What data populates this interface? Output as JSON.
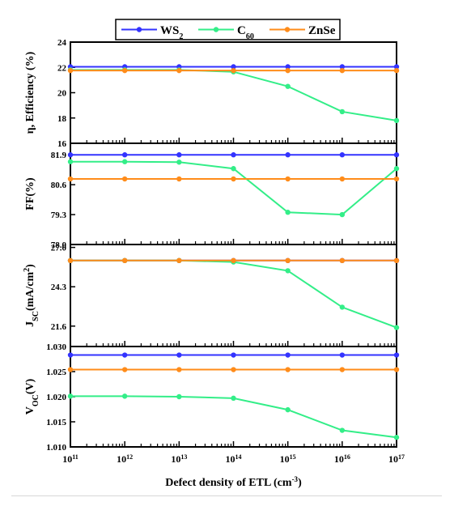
{
  "chart_data": {
    "type": "line",
    "x_axis": {
      "label": "Defect density of ETL (cm",
      "label_sup": "-3",
      "label_suffix": ")",
      "scale": "log",
      "ticks": [
        100000000000.0,
        1000000000000.0,
        10000000000000.0,
        100000000000000.0,
        1000000000000000.0,
        1e+16,
        1e+17
      ],
      "tick_exponents": [
        "11",
        "12",
        "13",
        "14",
        "15",
        "16",
        "17"
      ],
      "tick_base": "10"
    },
    "legend": {
      "placement": "top-center",
      "entries": [
        {
          "key": "ws2",
          "label": "WS",
          "sub": "2",
          "color": "#3333ff"
        },
        {
          "key": "c60",
          "label": "C",
          "sub": "60",
          "color": "#33ee88"
        },
        {
          "key": "znse",
          "label": "ZnSe",
          "sub": "",
          "color": "#ff8c1a"
        }
      ]
    },
    "x": [
      100000000000.0,
      1000000000000.0,
      10000000000000.0,
      100000000000000.0,
      1000000000000000.0,
      1e+16,
      1e+17
    ],
    "panels": [
      {
        "id": "efficiency",
        "ylabel": "η, Efficiency (%)",
        "ylim": [
          16,
          24
        ],
        "yticks": [
          16,
          18,
          20,
          22,
          24
        ],
        "ytick_labels": [
          "16",
          "18",
          "20",
          "22",
          "24"
        ],
        "series": [
          {
            "key": "ws2",
            "values": [
              22.05,
              22.05,
              22.05,
              22.05,
              22.05,
              22.05,
              22.05
            ]
          },
          {
            "key": "c60",
            "values": [
              21.8,
              21.8,
              21.8,
              21.65,
              20.5,
              18.5,
              17.8
            ]
          },
          {
            "key": "znse",
            "values": [
              21.75,
              21.75,
              21.75,
              21.75,
              21.75,
              21.75,
              21.75
            ]
          }
        ]
      },
      {
        "id": "ff",
        "ylabel": "FF(%)",
        "ylim": [
          78.0,
          82.4
        ],
        "yticks": [
          78.0,
          79.3,
          80.6,
          81.9
        ],
        "ytick_labels": [
          "78.0",
          "79.3",
          "80.6",
          "81.9"
        ],
        "series": [
          {
            "key": "ws2",
            "values": [
              81.9,
              81.9,
              81.9,
              81.9,
              81.9,
              81.9,
              81.9
            ]
          },
          {
            "key": "c60",
            "values": [
              81.6,
              81.6,
              81.58,
              81.3,
              79.4,
              79.3,
              81.3
            ]
          },
          {
            "key": "znse",
            "values": [
              80.85,
              80.85,
              80.85,
              80.85,
              80.85,
              80.85,
              80.85
            ]
          }
        ]
      },
      {
        "id": "jsc",
        "ylabel": "J",
        "ylabel_sub": "SC",
        "ylabel_mid": "(mA/cm",
        "ylabel_sup": "2",
        "ylabel_end": ")",
        "ylim": [
          20.2,
          27.2
        ],
        "yticks": [
          21.6,
          24.3,
          27.0
        ],
        "ytick_labels": [
          "21.6",
          "24.3",
          "27.0"
        ],
        "series": [
          {
            "key": "ws2",
            "values": [
              26.1,
              26.1,
              26.1,
              26.1,
              26.1,
              26.1,
              26.1
            ]
          },
          {
            "key": "c60",
            "values": [
              26.1,
              26.1,
              26.1,
              26.0,
              25.4,
              22.9,
              21.5
            ]
          },
          {
            "key": "znse",
            "values": [
              26.1,
              26.1,
              26.1,
              26.1,
              26.1,
              26.1,
              26.1
            ]
          }
        ]
      },
      {
        "id": "voc",
        "ylabel": "V",
        "ylabel_sub": "OC",
        "ylabel_end": "(V)",
        "ylim": [
          1.01,
          1.03
        ],
        "yticks": [
          1.01,
          1.015,
          1.02,
          1.025,
          1.03
        ],
        "ytick_labels": [
          "1.010",
          "1.015",
          "1.020",
          "1.025",
          "1.030"
        ],
        "series": [
          {
            "key": "ws2",
            "values": [
              1.0283,
              1.0283,
              1.0283,
              1.0283,
              1.0283,
              1.0283,
              1.0283
            ]
          },
          {
            "key": "c60",
            "values": [
              1.0201,
              1.0201,
              1.02,
              1.0197,
              1.0174,
              1.0133,
              1.0119
            ]
          },
          {
            "key": "znse",
            "values": [
              1.0254,
              1.0254,
              1.0254,
              1.0254,
              1.0254,
              1.0254,
              1.0254
            ]
          }
        ]
      }
    ]
  }
}
